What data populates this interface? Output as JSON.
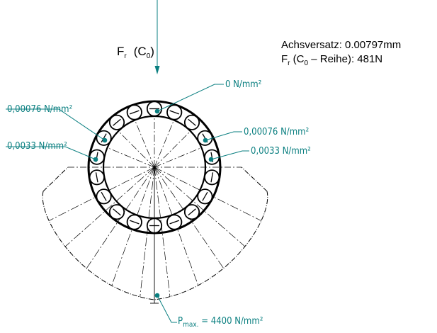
{
  "force": {
    "symbol": "F",
    "symbol_sub": "r",
    "condition_open": "(C",
    "condition_sub": "0",
    "condition_close": ")"
  },
  "info": {
    "offset_line": "Achsversatz: 0.00797mm",
    "load_symbol": "F",
    "load_symbol_sub": "r",
    "load_series_open": " (C",
    "load_series_sub": "0",
    "load_series_rest": " – Reihe): 481N"
  },
  "labels": {
    "top_right": "0 N/mm²",
    "upper_left": "0,00076 N/mm²",
    "upper_right": "0,00076 N/mm²",
    "mid_left": "0,0033 N/mm²",
    "mid_right": "0,0033 N/mm²",
    "max_prefix": "P",
    "max_sub": "max.",
    "max_value": " = 4400 N/mm²"
  },
  "colors": {
    "accent": "#0a7f80",
    "lines": "#000000",
    "background": "#ffffff"
  }
}
